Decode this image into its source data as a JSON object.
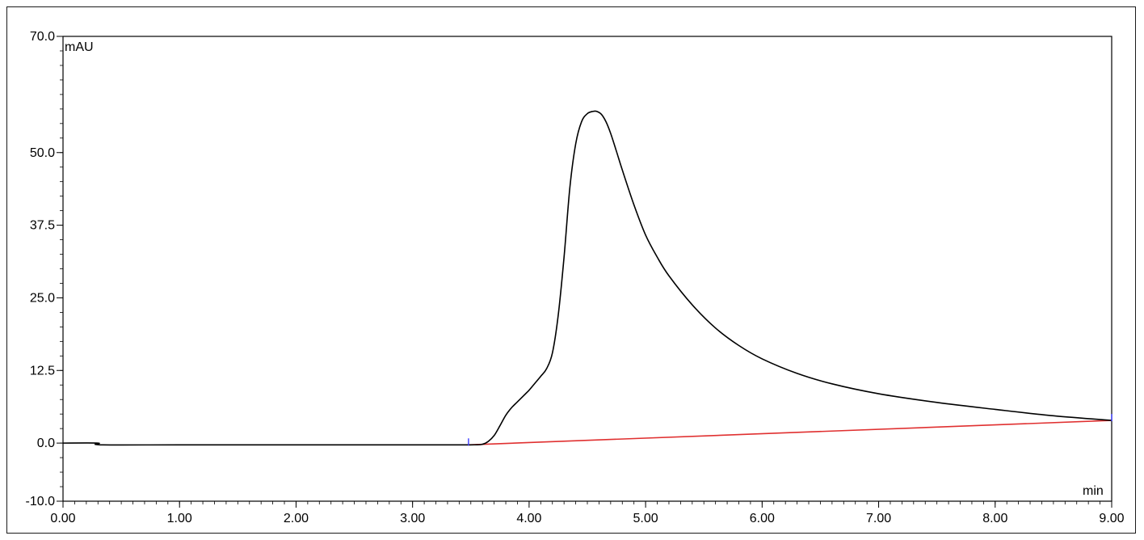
{
  "chart_data": {
    "type": "line",
    "ylabel": "mAU",
    "xlabel": "min",
    "xlim": [
      0,
      9
    ],
    "ylim": [
      -10,
      70
    ],
    "x_ticks": [
      "0.00",
      "1.00",
      "2.00",
      "3.00",
      "4.00",
      "5.00",
      "6.00",
      "7.00",
      "8.00",
      "9.00"
    ],
    "y_ticks": [
      "-10.0",
      "0.0",
      "12.5",
      "25.0",
      "37.5",
      "50.0",
      "70.0"
    ],
    "grid": false,
    "colors": {
      "signal": "#000000",
      "baseline": "#e03030",
      "markers": "#3a3aff",
      "axes": "#000000"
    },
    "series": [
      {
        "x": [
          0.0,
          0.3,
          0.32,
          1.0,
          2.0,
          3.0,
          3.5,
          3.6,
          3.65,
          3.7,
          3.75,
          3.8,
          3.85,
          3.9,
          3.95,
          4.0,
          4.05,
          4.1,
          4.15,
          4.2,
          4.25,
          4.3,
          4.35,
          4.4,
          4.45,
          4.5,
          4.55,
          4.58,
          4.62,
          4.66,
          4.7,
          4.75,
          4.8,
          4.9,
          5.0,
          5.1,
          5.2,
          5.4,
          5.6,
          5.8,
          6.0,
          6.3,
          6.6,
          7.0,
          7.5,
          8.0,
          8.5,
          9.0
        ],
        "values": [
          0.0,
          0.0,
          -0.3,
          -0.3,
          -0.3,
          -0.3,
          -0.3,
          -0.2,
          0.3,
          1.3,
          3.0,
          4.8,
          6.1,
          7.1,
          8.1,
          9.1,
          10.3,
          11.5,
          12.8,
          15.5,
          22.0,
          32.0,
          44.0,
          51.5,
          55.3,
          56.7,
          57.1,
          57.1,
          56.6,
          55.3,
          53.3,
          50.2,
          47.0,
          41.0,
          35.8,
          32.0,
          28.8,
          23.8,
          19.8,
          16.8,
          14.5,
          12.0,
          10.2,
          8.5,
          7.0,
          5.8,
          4.7,
          3.9
        ]
      }
    ],
    "baseline": {
      "x": [
        3.48,
        9.0
      ],
      "values": [
        -0.3,
        3.9
      ]
    },
    "markers_x": [
      3.48,
      9.0
    ]
  }
}
